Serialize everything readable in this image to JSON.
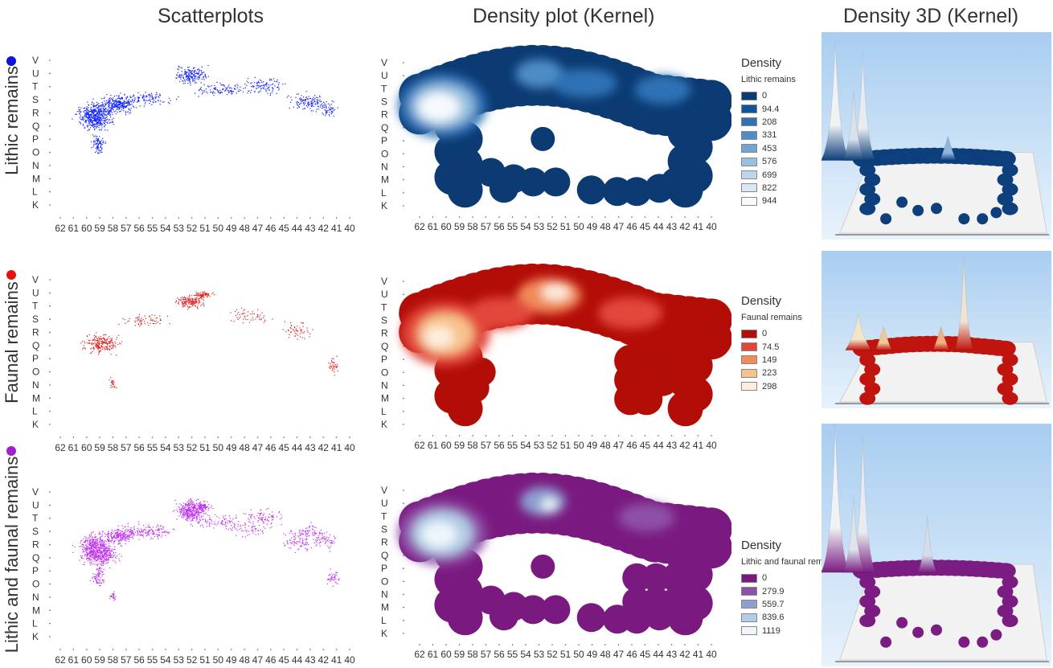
{
  "titles": {
    "scatter": "Scatterplots",
    "density": "Density plot (Kernel)",
    "density3d": "Density 3D (Kernel)"
  },
  "rows": [
    {
      "label": "Lithic remains",
      "dot_color": "#1010e0",
      "point_color": "#1020ff"
    },
    {
      "label": "Faunal remains",
      "dot_color": "#e81010",
      "point_color": "#e02020"
    },
    {
      "label": "Lithic and faunal remains",
      "dot_color": "#a020d0",
      "point_color": "#c030f0"
    }
  ],
  "chart_data": [
    {
      "type": "scatter",
      "series": "Lithic remains",
      "x_ticks": [
        "62",
        "61",
        "60",
        "59",
        "58",
        "57",
        "56",
        "55",
        "54",
        "53",
        "52",
        "51",
        "50",
        "49",
        "48",
        "47",
        "46",
        "45",
        "44",
        "43",
        "42",
        "41",
        "40"
      ],
      "y_ticks": [
        "V",
        "U",
        "T",
        "S",
        "R",
        "Q",
        "P",
        "O",
        "N",
        "M",
        "L",
        "K"
      ],
      "grid": false
    },
    {
      "type": "heatmap",
      "series": "Lithic remains",
      "x_ticks": [
        "62",
        "61",
        "60",
        "59",
        "58",
        "57",
        "56",
        "55",
        "54",
        "53",
        "52",
        "51",
        "50",
        "49",
        "48",
        "47",
        "46",
        "45",
        "44",
        "43",
        "42",
        "41",
        "40"
      ],
      "y_ticks": [
        "V",
        "U",
        "T",
        "S",
        "R",
        "Q",
        "P",
        "O",
        "N",
        "M",
        "L",
        "K"
      ],
      "legend": {
        "title": "Density",
        "subtitle": "Lithic remains",
        "levels": [
          "0",
          "94.4",
          "208",
          "331",
          "453",
          "576",
          "699",
          "822",
          "944"
        ],
        "colors": [
          "#0c3a73",
          "#12549a",
          "#2f72b5",
          "#4d8cc6",
          "#6fa5d3",
          "#97c0e0",
          "#bcd6ec",
          "#dae8f4",
          "#f6fafd"
        ]
      }
    },
    {
      "type": "scatter",
      "series": "Faunal remains",
      "x_ticks": [
        "62",
        "61",
        "60",
        "59",
        "58",
        "57",
        "56",
        "55",
        "54",
        "53",
        "52",
        "51",
        "50",
        "49",
        "48",
        "47",
        "46",
        "45",
        "44",
        "43",
        "42",
        "41",
        "40"
      ],
      "y_ticks": [
        "V",
        "U",
        "T",
        "S",
        "R",
        "Q",
        "P",
        "O",
        "N",
        "M",
        "L",
        "K"
      ],
      "grid": false
    },
    {
      "type": "heatmap",
      "series": "Faunal remains",
      "x_ticks": [
        "62",
        "61",
        "60",
        "59",
        "58",
        "57",
        "56",
        "55",
        "54",
        "53",
        "52",
        "51",
        "50",
        "49",
        "48",
        "47",
        "46",
        "45",
        "44",
        "43",
        "42",
        "41",
        "40"
      ],
      "y_ticks": [
        "V",
        "U",
        "T",
        "S",
        "R",
        "Q",
        "P",
        "O",
        "N",
        "M",
        "L",
        "K"
      ],
      "legend": {
        "title": "Density",
        "subtitle": "Faunal remains",
        "levels": [
          "0",
          "74.5",
          "149",
          "223",
          "298"
        ],
        "colors": [
          "#b30d08",
          "#e2473a",
          "#f28a5c",
          "#f7c38c",
          "#fdeedd"
        ]
      }
    },
    {
      "type": "scatter",
      "series": "Lithic and faunal remains",
      "x_ticks": [
        "62",
        "61",
        "60",
        "59",
        "58",
        "57",
        "56",
        "55",
        "54",
        "53",
        "52",
        "51",
        "50",
        "49",
        "48",
        "47",
        "46",
        "45",
        "44",
        "43",
        "42",
        "41",
        "40"
      ],
      "y_ticks": [
        "V",
        "U",
        "T",
        "S",
        "R",
        "Q",
        "P",
        "O",
        "N",
        "M",
        "L",
        "K"
      ],
      "grid": false
    },
    {
      "type": "heatmap",
      "series": "Lithic and faunal remains",
      "x_ticks": [
        "62",
        "61",
        "60",
        "59",
        "58",
        "57",
        "56",
        "55",
        "54",
        "53",
        "52",
        "51",
        "50",
        "49",
        "48",
        "47",
        "46",
        "45",
        "44",
        "43",
        "42",
        "41",
        "40"
      ],
      "y_ticks": [
        "V",
        "U",
        "T",
        "S",
        "R",
        "Q",
        "P",
        "O",
        "N",
        "M",
        "L",
        "K"
      ],
      "legend": {
        "title": "Density",
        "subtitle": "Lithic and faunal remains",
        "levels": [
          "0",
          "279.9",
          "559.7",
          "839.6",
          "1119"
        ],
        "colors": [
          "#7a1a80",
          "#8e4fa6",
          "#8c9fd0",
          "#b4cde6",
          "#eef6fb"
        ]
      }
    }
  ],
  "density3d": [
    {
      "series": "Lithic remains",
      "base_color": "#0d3f7c",
      "sky_color": "#a8cdf0"
    },
    {
      "series": "Faunal remains",
      "base_color": "#c0140e",
      "sky_color": "#a8cdf0"
    },
    {
      "series": "Lithic and faunal remains",
      "base_color": "#7b1c82",
      "sky_color": "#a8cdf0"
    }
  ]
}
